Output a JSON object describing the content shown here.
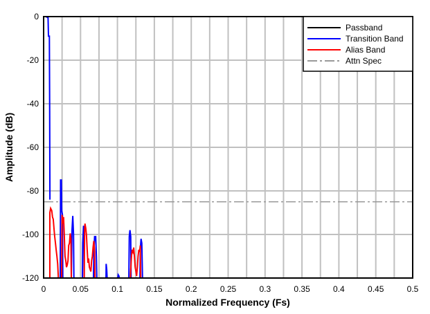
{
  "chart_data": {
    "type": "line",
    "xlabel": "Normalized Frequency (Fs)",
    "ylabel": "Amplitude (dB)",
    "xlim": [
      0,
      0.5
    ],
    "ylim": [
      -120,
      0
    ],
    "xticks": [
      "0",
      "0.05",
      "0.1",
      "0.15",
      "0.2",
      "0.25",
      "0.3",
      "0.35",
      "0.4",
      "0.45",
      "0.5"
    ],
    "yticks": [
      "0",
      "-20",
      "-40",
      "-60",
      "-80",
      "-100",
      "-120"
    ],
    "grid": true,
    "legend_position": "top-right",
    "series": [
      {
        "name": "Passband",
        "color": "#000000",
        "style": "solid",
        "points": [
          [
            0,
            0
          ],
          [
            0.0035,
            0
          ]
        ]
      },
      {
        "name": "Transition Band",
        "color": "#0000ff",
        "style": "solid",
        "points": [
          [
            0.003,
            0
          ],
          [
            0.006,
            -0.5
          ],
          [
            0.0066,
            -9
          ],
          [
            0.0078,
            -9
          ],
          [
            0.0082,
            -40
          ],
          [
            0.0085,
            -84
          ],
          null,
          [
            0.0225,
            -120
          ],
          [
            0.023,
            -75
          ],
          [
            0.024,
            -75
          ],
          [
            0.0245,
            -89
          ],
          [
            0.0255,
            -91
          ],
          [
            0.026,
            -120
          ],
          null,
          [
            0.0375,
            -120
          ],
          [
            0.0385,
            -98
          ],
          [
            0.0395,
            -91.5
          ],
          [
            0.0405,
            -100
          ],
          [
            0.041,
            -120
          ],
          null,
          [
            0.0525,
            -120
          ],
          [
            0.053,
            -104
          ],
          [
            0.054,
            -96
          ],
          [
            0.0548,
            -100
          ],
          [
            0.055,
            -120
          ],
          null,
          [
            0.0675,
            -120
          ],
          [
            0.068,
            -108
          ],
          [
            0.069,
            -101
          ],
          [
            0.0705,
            -101
          ],
          [
            0.0715,
            -110
          ],
          [
            0.072,
            -120
          ],
          null,
          [
            0.0845,
            -120
          ],
          [
            0.0847,
            -113.5
          ],
          [
            0.0855,
            -116
          ],
          [
            0.086,
            -120
          ],
          null,
          [
            0.1005,
            -120
          ],
          [
            0.101,
            -118.5
          ],
          [
            0.102,
            -119
          ],
          [
            0.1025,
            -120
          ],
          null,
          [
            0.1155,
            -120
          ],
          [
            0.116,
            -101
          ],
          [
            0.117,
            -98
          ],
          [
            0.118,
            -101
          ],
          [
            0.1185,
            -120
          ],
          null,
          [
            0.1305,
            -120
          ],
          [
            0.131,
            -107
          ],
          [
            0.132,
            -102
          ],
          [
            0.133,
            -104
          ],
          [
            0.134,
            -120
          ]
        ]
      },
      {
        "name": "Alias Band",
        "color": "#ff0000",
        "style": "solid",
        "points": [
          [
            0.0084,
            -120
          ],
          [
            0.0084,
            -90
          ],
          [
            0.0095,
            -88
          ],
          [
            0.011,
            -89
          ],
          [
            0.012,
            -92
          ],
          [
            0.013,
            -93
          ],
          [
            0.014,
            -97
          ],
          [
            0.015,
            -101
          ],
          [
            0.016,
            -104
          ],
          [
            0.017,
            -107
          ],
          [
            0.018,
            -110
          ],
          [
            0.019,
            -113.5
          ],
          [
            0.02,
            -120
          ],
          null,
          [
            0.0244,
            -120
          ],
          [
            0.025,
            -91
          ],
          [
            0.026,
            -95
          ],
          [
            0.027,
            -92
          ],
          [
            0.028,
            -100
          ],
          [
            0.029,
            -110
          ],
          [
            0.03,
            -112
          ],
          [
            0.031,
            -115
          ],
          [
            0.032,
            -114
          ],
          [
            0.033,
            -112
          ],
          [
            0.034,
            -105
          ],
          [
            0.035,
            -104
          ],
          [
            0.036,
            -99.5
          ],
          [
            0.037,
            -102
          ],
          [
            0.0375,
            -120
          ],
          null,
          [
            0.055,
            -120
          ],
          [
            0.0555,
            -98
          ],
          [
            0.056,
            -95
          ],
          [
            0.057,
            -97
          ],
          [
            0.058,
            -100
          ],
          [
            0.059,
            -107
          ],
          [
            0.06,
            -113
          ],
          [
            0.061,
            -111
          ],
          [
            0.062,
            -115
          ],
          [
            0.063,
            -116
          ],
          [
            0.064,
            -117
          ],
          [
            0.065,
            -112
          ],
          [
            0.066,
            -110
          ],
          [
            0.067,
            -106
          ],
          [
            0.068,
            -103
          ],
          [
            0.069,
            -108
          ],
          [
            0.0695,
            -120
          ],
          null,
          [
            0.1175,
            -120
          ],
          [
            0.118,
            -116
          ],
          [
            0.119,
            -110
          ],
          [
            0.12,
            -107
          ],
          [
            0.121,
            -108
          ],
          [
            0.122,
            -106
          ],
          [
            0.123,
            -110
          ],
          [
            0.124,
            -115
          ],
          [
            0.125,
            -117
          ],
          [
            0.126,
            -119
          ],
          [
            0.127,
            -115
          ],
          [
            0.128,
            -110
          ],
          [
            0.129,
            -107
          ],
          [
            0.13,
            -108
          ],
          [
            0.131,
            -105
          ],
          [
            0.1315,
            -120
          ]
        ]
      },
      {
        "name": "Attn Spec",
        "color": "#999999",
        "style": "dashdot",
        "points": [
          [
            0,
            -85
          ],
          [
            0.5,
            -85
          ]
        ]
      }
    ]
  }
}
